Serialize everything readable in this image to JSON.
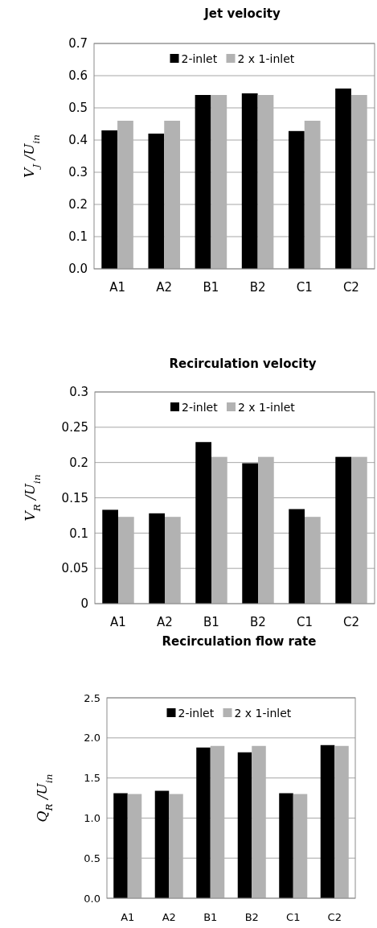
{
  "chart_data": [
    {
      "type": "bar",
      "title": "Jet velocity",
      "ylabel": "V$_{J}$ /U$_{in}$",
      "categories": [
        "A1",
        "A2",
        "B1",
        "B2",
        "C1",
        "C2"
      ],
      "series": [
        {
          "name": "2-inlet",
          "color": "#000000",
          "values": [
            0.43,
            0.42,
            0.54,
            0.545,
            0.428,
            0.56
          ]
        },
        {
          "name": "2 x 1-inlet",
          "color": "#b2b2b2",
          "values": [
            0.46,
            0.46,
            0.54,
            0.54,
            0.46,
            0.54
          ]
        }
      ],
      "ylim": [
        0,
        0.7
      ],
      "yticks": [
        {
          "value": 0,
          "label": "0.0"
        },
        0.1,
        0.2,
        0.3,
        0.4,
        0.5,
        0.6,
        0.7
      ],
      "grid": "y",
      "legend": "top"
    },
    {
      "type": "bar",
      "title": "Recirculation velocity",
      "ylabel": "V$_{R}$ /U$_{in}$",
      "categories": [
        "A1",
        "A2",
        "B1",
        "B2",
        "C1",
        "C2"
      ],
      "series": [
        {
          "name": "2-inlet",
          "color": "#000000",
          "values": [
            0.133,
            0.128,
            0.229,
            0.199,
            0.134,
            0.208
          ]
        },
        {
          "name": "2 x 1-inlet",
          "color": "#b2b2b2",
          "values": [
            0.123,
            0.123,
            0.208,
            0.208,
            0.123,
            0.208
          ]
        }
      ],
      "ylim": [
        0,
        0.3
      ],
      "yticks": [
        0,
        0.05,
        0.1,
        0.15,
        0.2,
        0.25,
        0.3
      ],
      "grid": "y",
      "legend": "top"
    },
    {
      "type": "bar",
      "title": "Recirculation flow rate",
      "ylabel": "Q$_{R}$ /U$_{in}$",
      "categories": [
        "A1",
        "A2",
        "B1",
        "B2",
        "C1",
        "C2"
      ],
      "series": [
        {
          "name": "2-inlet",
          "color": "#000000",
          "values": [
            1.31,
            1.34,
            1.88,
            1.82,
            1.31,
            1.91
          ]
        },
        {
          "name": "2 x 1-inlet",
          "color": "#b2b2b2",
          "values": [
            1.3,
            1.3,
            1.9,
            1.9,
            1.3,
            1.9
          ]
        }
      ],
      "ylim": [
        0,
        2.5
      ],
      "yticks": [
        {
          "value": 0,
          "label": "0.0"
        },
        0.5,
        {
          "value": 1,
          "label": "1.0"
        },
        1.5,
        {
          "value": 2,
          "label": "2.0"
        },
        2.5
      ],
      "grid": "y",
      "legend": "top"
    }
  ]
}
